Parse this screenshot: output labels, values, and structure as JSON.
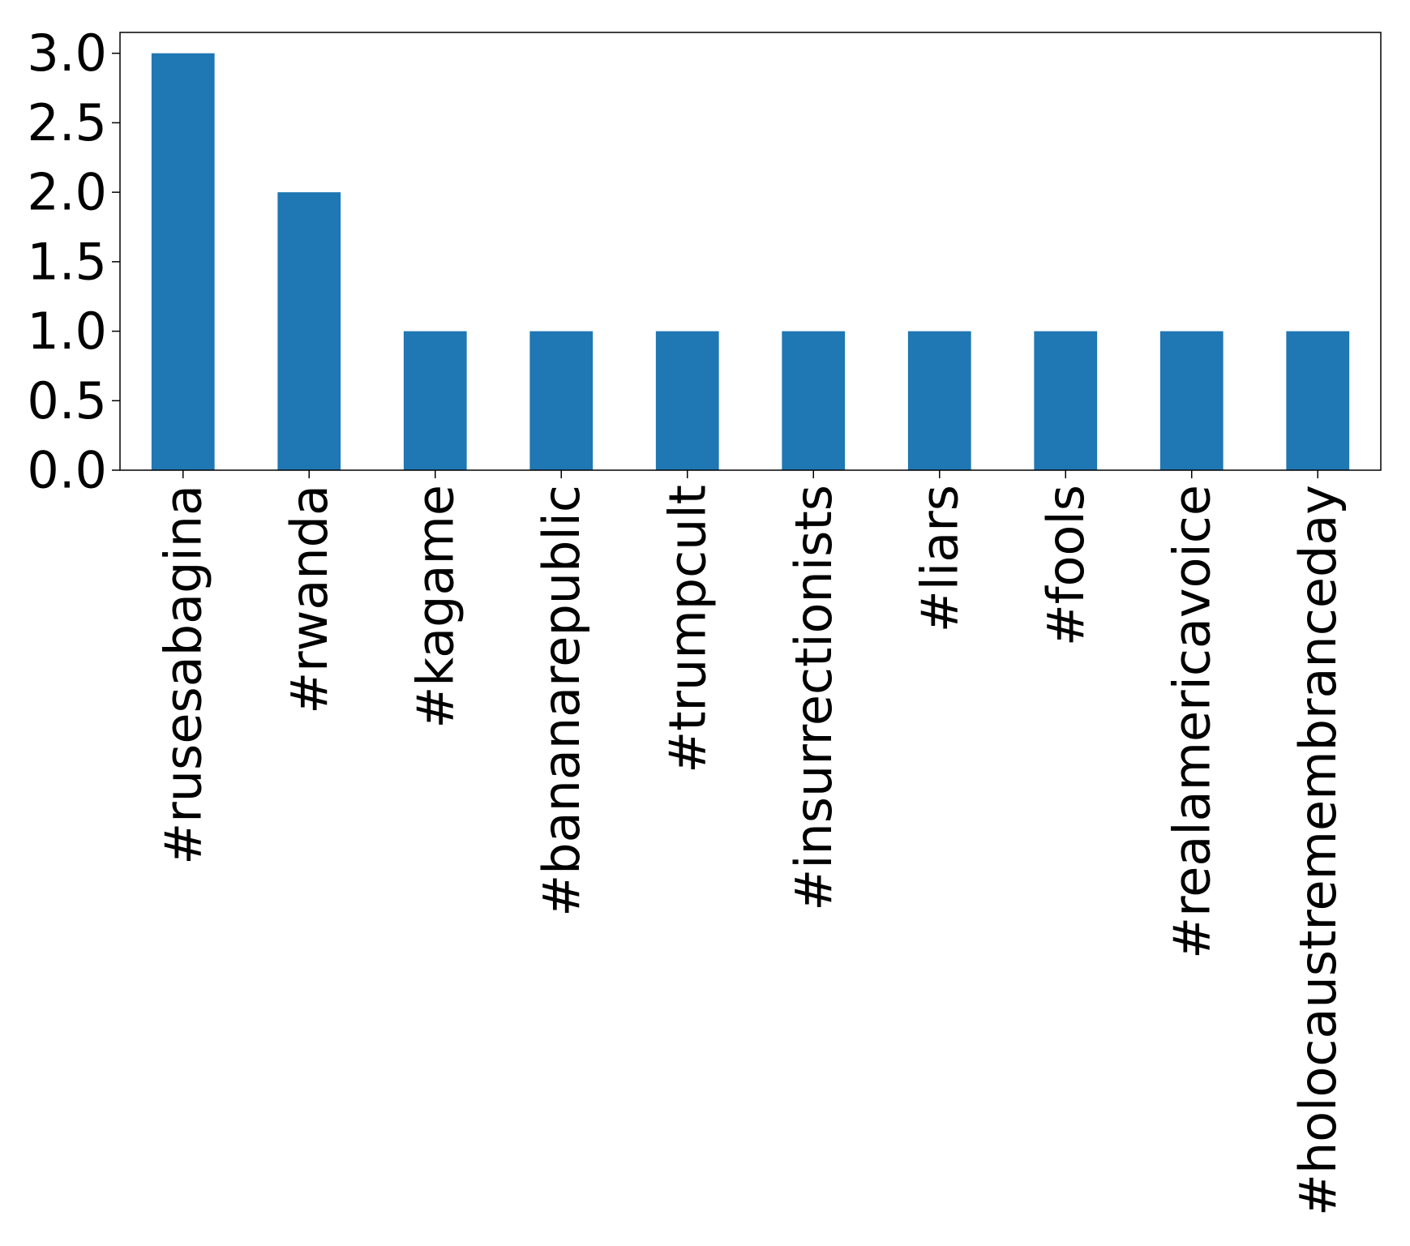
{
  "chart_data": {
    "type": "bar",
    "categories": [
      "#rusesabagina",
      "#rwanda",
      "#kagame",
      "#bananarepublic",
      "#trumpcult",
      "#insurrectionists",
      "#liars",
      "#fools",
      "#realamericavoice",
      "#holocaustremembranceday"
    ],
    "values": [
      3,
      2,
      1,
      1,
      1,
      1,
      1,
      1,
      1,
      1
    ],
    "title": "",
    "xlabel": "",
    "ylabel": "",
    "ylim": [
      0,
      3.15
    ],
    "yticks": [
      "0.0",
      "0.5",
      "1.0",
      "1.5",
      "2.0",
      "2.5",
      "3.0"
    ],
    "grid": false,
    "bar_color": "#1f77b4",
    "x_tick_rotation_deg": 90
  }
}
